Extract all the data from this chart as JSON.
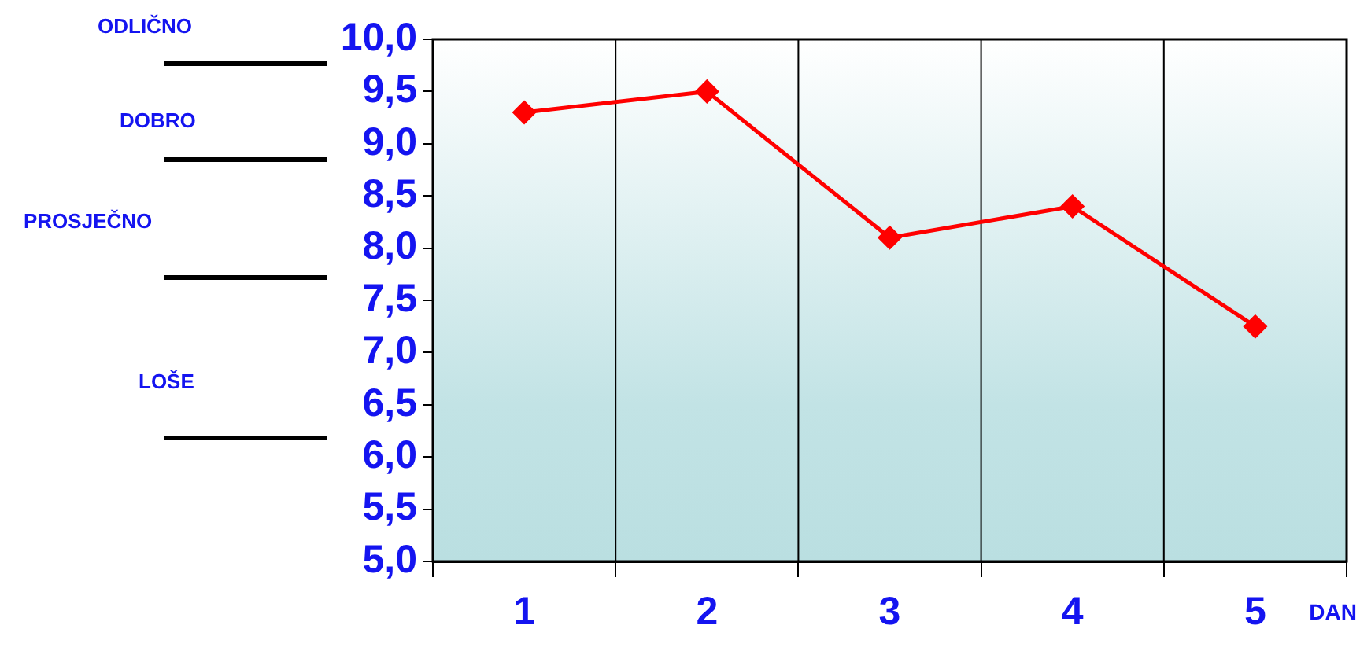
{
  "chart_data": {
    "type": "line",
    "xlabel": "DAN",
    "categories": [
      "1",
      "2",
      "3",
      "4",
      "5"
    ],
    "series": [
      {
        "color": "#ff0000",
        "values": [
          9.3,
          9.5,
          8.1,
          8.4,
          7.25
        ]
      }
    ],
    "ylim": [
      5,
      10
    ],
    "yticks": [
      {
        "value": 5,
        "label": "5,0"
      },
      {
        "value": 5.5,
        "label": "5,5"
      },
      {
        "value": 6,
        "label": "6,0"
      },
      {
        "value": 6.5,
        "label": "6,5"
      },
      {
        "value": 7,
        "label": "7,0"
      },
      {
        "value": 7.5,
        "label": "7,5"
      },
      {
        "value": 8,
        "label": "8,0"
      },
      {
        "value": 8.5,
        "label": "8,5"
      },
      {
        "value": 9,
        "label": "9,0"
      },
      {
        "value": 9.5,
        "label": "9,5"
      },
      {
        "value": 10,
        "label": "10,0"
      }
    ],
    "grid": "x",
    "marker": "diamond",
    "line_style": "solid",
    "legend": false,
    "annotations": [
      "ODLIČNO",
      "DOBRO",
      "PROSJEČNO",
      "LOŠE"
    ]
  }
}
